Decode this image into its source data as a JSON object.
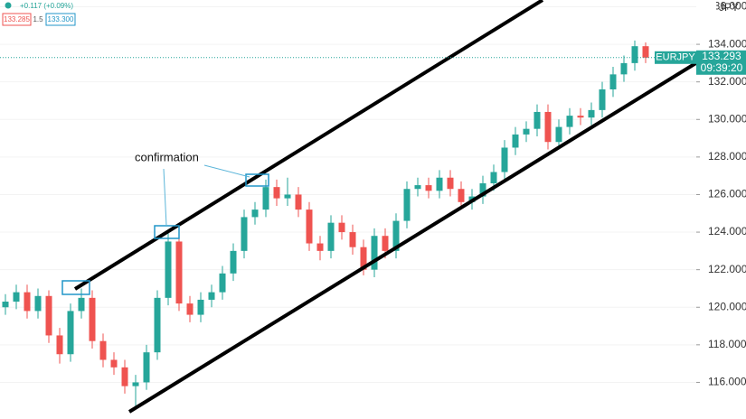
{
  "chart_data": {
    "type": "candlestick",
    "symbol": "EURJPY",
    "currency": "JPY",
    "header": {
      "change": "+0.117 (+0.09%)",
      "bid": "133.285",
      "spread": "1.5",
      "ask": "133.300"
    },
    "annotation": "confirmation",
    "last_price": 133.293,
    "countdown": "09:39:20",
    "up_color": "#26a69a",
    "down_color": "#ef5350",
    "ylim": [
      114.05,
      136.36
    ],
    "yticks": [
      {
        "value": 116,
        "label": "116.000"
      },
      {
        "value": 118,
        "label": "118.000"
      },
      {
        "value": 120,
        "label": "120.000"
      },
      {
        "value": 122,
        "label": "122.000"
      },
      {
        "value": 124,
        "label": "124.000"
      },
      {
        "value": 126,
        "label": "126.000"
      },
      {
        "value": 128,
        "label": "128.000"
      },
      {
        "value": 130,
        "label": "130.000"
      },
      {
        "value": 132,
        "label": "132.000"
      },
      {
        "value": 134,
        "label": "134.000"
      },
      {
        "value": 136,
        "label": "136.000"
      }
    ],
    "open": [
      120.0,
      120.3,
      120.8,
      119.8,
      120.6,
      118.5,
      117.5,
      119.8,
      120.5,
      118.2,
      117.2,
      116.8,
      115.8,
      116.0,
      117.6,
      120.5,
      123.5,
      120.2,
      119.6,
      120.4,
      120.8,
      121.8,
      123.0,
      124.8,
      125.2,
      126.4,
      125.8,
      126.0,
      125.2,
      123.4,
      123.0,
      124.5,
      124.0,
      123.2,
      122.0,
      123.8,
      123.0,
      124.6,
      126.3,
      126.5,
      126.2,
      126.9,
      126.3,
      125.6,
      125.9,
      126.6,
      127.2,
      128.5,
      129.2,
      129.5,
      130.4,
      128.8,
      129.6,
      130.2,
      130.1,
      130.5,
      131.6,
      132.4,
      133.0,
      133.9
    ],
    "high": [
      120.7,
      121.2,
      121.2,
      121.0,
      120.9,
      118.9,
      120.2,
      121.0,
      120.9,
      118.6,
      117.6,
      117.2,
      116.4,
      118.0,
      120.9,
      124.0,
      123.9,
      120.6,
      120.8,
      121.2,
      122.2,
      123.4,
      125.2,
      125.6,
      126.8,
      126.8,
      126.9,
      126.4,
      125.6,
      123.8,
      124.9,
      124.9,
      124.4,
      123.6,
      124.2,
      124.2,
      125.0,
      126.7,
      126.9,
      126.9,
      127.3,
      127.3,
      126.7,
      126.3,
      127.0,
      127.6,
      128.9,
      129.6,
      129.9,
      130.8,
      130.8,
      130.0,
      130.6,
      130.6,
      130.9,
      132.0,
      132.8,
      133.4,
      134.2,
      134.1
    ],
    "low": [
      119.6,
      119.9,
      119.4,
      119.4,
      118.1,
      117.0,
      117.1,
      119.4,
      117.8,
      116.8,
      116.4,
      115.4,
      114.6,
      115.6,
      117.2,
      120.1,
      119.8,
      119.2,
      119.2,
      120.0,
      120.4,
      121.4,
      122.6,
      124.4,
      124.8,
      125.4,
      125.4,
      124.8,
      123.0,
      122.5,
      122.6,
      123.6,
      122.8,
      121.7,
      121.6,
      122.6,
      122.6,
      124.2,
      125.9,
      125.8,
      125.8,
      125.9,
      125.2,
      125.2,
      125.5,
      126.2,
      126.8,
      128.1,
      128.8,
      129.1,
      128.4,
      128.4,
      129.2,
      129.7,
      129.7,
      130.1,
      131.2,
      132.0,
      132.6,
      133.0
    ],
    "close": [
      120.3,
      120.8,
      119.8,
      120.6,
      118.5,
      117.5,
      119.8,
      120.5,
      118.2,
      117.2,
      116.8,
      115.8,
      116.0,
      117.6,
      120.5,
      123.5,
      120.2,
      119.6,
      120.4,
      120.8,
      121.8,
      123.0,
      124.8,
      125.2,
      126.4,
      125.8,
      126.0,
      125.2,
      123.4,
      123.0,
      124.5,
      124.0,
      123.2,
      122.0,
      123.8,
      123.0,
      124.6,
      126.3,
      126.5,
      126.2,
      126.9,
      126.3,
      125.6,
      125.9,
      126.6,
      127.2,
      128.5,
      129.2,
      129.5,
      130.4,
      128.8,
      129.6,
      130.2,
      130.1,
      130.5,
      131.6,
      132.4,
      133.0,
      133.9,
      133.29
    ]
  }
}
